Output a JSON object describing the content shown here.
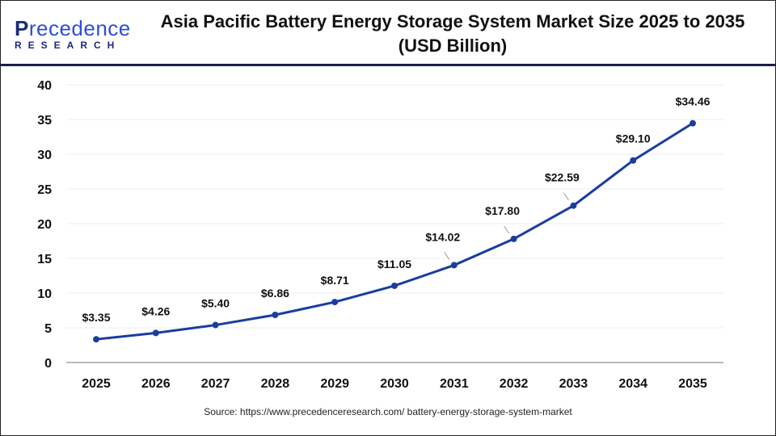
{
  "logo": {
    "brand_first": "P",
    "brand_rest": "recedence",
    "brand_sub": "RESEARCH"
  },
  "title_line1": "Asia Pacific Battery Energy Storage System Market Size 2025 to 2035",
  "title_line2": "(USD Billion)",
  "source": "Source: https://www.precedenceresearch.com/ battery-energy-storage-system-market",
  "colors": {
    "line": "#1a3d9e",
    "header_rule": "#1b1f4a",
    "grid": "#eeeeee"
  },
  "chart_data": {
    "type": "line",
    "title": "Asia Pacific Battery Energy Storage System Market Size 2025 to 2035 (USD Billion)",
    "categories": [
      "2025",
      "2026",
      "2027",
      "2028",
      "2029",
      "2030",
      "2031",
      "2032",
      "2033",
      "2034",
      "2035"
    ],
    "values": [
      3.35,
      4.26,
      5.4,
      6.86,
      8.71,
      11.05,
      14.02,
      17.8,
      22.59,
      29.1,
      34.46
    ],
    "data_labels": [
      "$3.35",
      "$4.26",
      "$5.40",
      "$6.86",
      "$8.71",
      "$11.05",
      "$14.02",
      "$17.80",
      "$22.59",
      "$29.10",
      "$34.46"
    ],
    "ylim": [
      0,
      40
    ],
    "yticks": [
      0,
      5,
      10,
      15,
      20,
      25,
      30,
      35,
      40
    ],
    "grid": true,
    "xlabel": "",
    "ylabel": ""
  }
}
